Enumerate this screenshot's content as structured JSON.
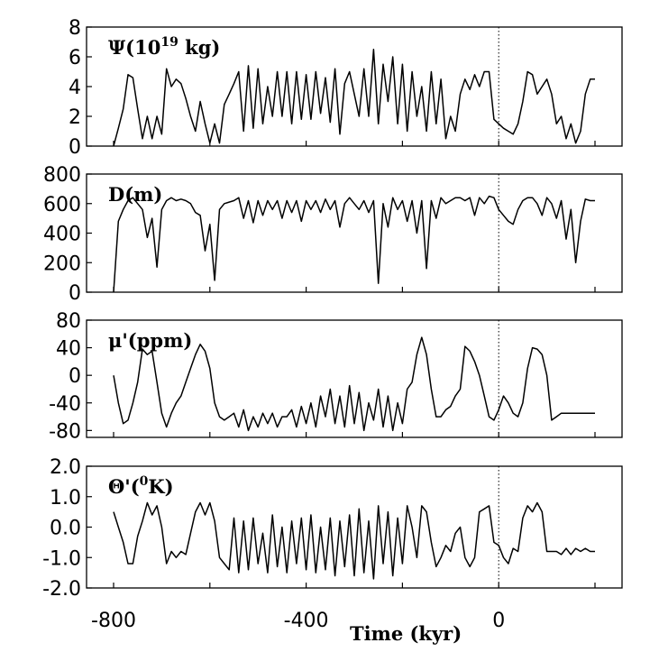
{
  "chart_data": [
    {
      "type": "line",
      "label": "Ψ(10",
      "label_sup": "19",
      "label_suffix": " kg)",
      "xlim": [
        -800,
        200
      ],
      "ylim": [
        0,
        8
      ],
      "yticks": [
        "0",
        "2",
        "4",
        "6",
        "8"
      ],
      "ytick_values": [
        0,
        2,
        4,
        6,
        8
      ],
      "x": [
        -800,
        -790,
        -780,
        -770,
        -760,
        -750,
        -740,
        -730,
        -720,
        -710,
        -700,
        -690,
        -680,
        -670,
        -660,
        -650,
        -640,
        -630,
        -620,
        -610,
        -600,
        -590,
        -580,
        -570,
        -560,
        -550,
        -540,
        -530,
        -520,
        -510,
        -500,
        -490,
        -480,
        -470,
        -460,
        -450,
        -440,
        -430,
        -420,
        -410,
        -400,
        -390,
        -380,
        -370,
        -360,
        -350,
        -340,
        -330,
        -320,
        -310,
        -300,
        -290,
        -280,
        -270,
        -260,
        -250,
        -240,
        -230,
        -220,
        -210,
        -200,
        -190,
        -180,
        -170,
        -160,
        -150,
        -140,
        -130,
        -120,
        -110,
        -100,
        -90,
        -80,
        -70,
        -60,
        -50,
        -40,
        -30,
        -20,
        -10,
        0,
        10,
        20,
        30,
        40,
        50,
        60,
        70,
        80,
        90,
        100,
        110,
        120,
        130,
        140,
        150,
        160,
        170,
        180,
        190,
        200
      ],
      "values": [
        0,
        1.2,
        2.5,
        4.8,
        4.6,
        2.5,
        0.5,
        2.0,
        0.5,
        2.0,
        0.8,
        5.2,
        4.0,
        4.5,
        4.2,
        3.2,
        2.0,
        1.0,
        3.0,
        1.5,
        0.2,
        1.5,
        0.2,
        2.8,
        3.5,
        4.2,
        5.0,
        1.0,
        5.4,
        1.2,
        5.2,
        1.5,
        4.0,
        2.0,
        5.0,
        2.0,
        5.0,
        1.5,
        5.0,
        1.8,
        4.8,
        1.8,
        5.0,
        2.2,
        4.6,
        1.6,
        5.2,
        0.8,
        4.2,
        5.0,
        3.5,
        2.0,
        5.2,
        2.0,
        6.5,
        1.5,
        5.5,
        3.0,
        6.0,
        1.5,
        5.5,
        1.0,
        5.0,
        2.0,
        4.0,
        1.0,
        5.0,
        1.5,
        4.5,
        0.5,
        2.0,
        1.0,
        3.5,
        4.5,
        3.8,
        4.8,
        4.0,
        5.0,
        5.0,
        1.8,
        1.5,
        1.2,
        1.0,
        0.8,
        1.5,
        3.0,
        5.0,
        4.8,
        3.5,
        4.0,
        4.5,
        3.5,
        1.5,
        2.0,
        0.5,
        1.5,
        0.2,
        1.0,
        3.5,
        4.5,
        4.5
      ]
    },
    {
      "type": "line",
      "label": "D(m)",
      "xlim": [
        -800,
        200
      ],
      "ylim": [
        0,
        800
      ],
      "yticks": [
        "0",
        "200",
        "400",
        "600",
        "800"
      ],
      "ytick_values": [
        0,
        200,
        400,
        600,
        800
      ],
      "x": [
        -800,
        -790,
        -780,
        -770,
        -760,
        -750,
        -740,
        -730,
        -720,
        -710,
        -700,
        -690,
        -680,
        -670,
        -660,
        -650,
        -640,
        -630,
        -620,
        -610,
        -600,
        -590,
        -580,
        -570,
        -560,
        -550,
        -540,
        -530,
        -520,
        -510,
        -500,
        -490,
        -480,
        -470,
        -460,
        -450,
        -440,
        -430,
        -420,
        -410,
        -400,
        -390,
        -380,
        -370,
        -360,
        -350,
        -340,
        -330,
        -320,
        -310,
        -300,
        -290,
        -280,
        -270,
        -260,
        -250,
        -240,
        -230,
        -220,
        -210,
        -200,
        -190,
        -180,
        -170,
        -160,
        -150,
        -140,
        -130,
        -120,
        -110,
        -100,
        -90,
        -80,
        -70,
        -60,
        -50,
        -40,
        -30,
        -20,
        -10,
        0,
        10,
        20,
        30,
        40,
        50,
        60,
        70,
        80,
        90,
        100,
        110,
        120,
        130,
        140,
        150,
        160,
        170,
        180,
        190,
        200
      ],
      "values": [
        0,
        480,
        560,
        620,
        640,
        600,
        560,
        370,
        500,
        170,
        560,
        620,
        640,
        620,
        630,
        620,
        600,
        540,
        520,
        280,
        460,
        80,
        560,
        600,
        610,
        620,
        640,
        500,
        620,
        470,
        620,
        520,
        620,
        560,
        620,
        500,
        620,
        540,
        620,
        480,
        620,
        560,
        620,
        540,
        630,
        560,
        620,
        440,
        600,
        640,
        600,
        560,
        620,
        540,
        620,
        60,
        600,
        440,
        640,
        560,
        620,
        480,
        620,
        400,
        620,
        160,
        620,
        500,
        640,
        600,
        620,
        640,
        640,
        620,
        640,
        520,
        640,
        600,
        650,
        640,
        560,
        520,
        480,
        460,
        560,
        620,
        640,
        640,
        600,
        520,
        640,
        600,
        500,
        620,
        360,
        560,
        200,
        480,
        630,
        620,
        620
      ]
    },
    {
      "type": "line",
      "label": "μ'(ppm)",
      "xlim": [
        -800,
        200
      ],
      "ylim": [
        -90,
        80
      ],
      "yticks": [
        "-80",
        "-40",
        "0",
        "40",
        "80"
      ],
      "ytick_values": [
        -80,
        -40,
        0,
        40,
        80
      ],
      "x": [
        -800,
        -790,
        -780,
        -770,
        -760,
        -750,
        -740,
        -730,
        -720,
        -710,
        -700,
        -690,
        -680,
        -670,
        -660,
        -650,
        -640,
        -630,
        -620,
        -610,
        -600,
        -590,
        -580,
        -570,
        -560,
        -550,
        -540,
        -530,
        -520,
        -510,
        -500,
        -490,
        -480,
        -470,
        -460,
        -450,
        -440,
        -430,
        -420,
        -410,
        -400,
        -390,
        -380,
        -370,
        -360,
        -350,
        -340,
        -330,
        -320,
        -310,
        -300,
        -290,
        -280,
        -270,
        -260,
        -250,
        -240,
        -230,
        -220,
        -210,
        -200,
        -190,
        -180,
        -170,
        -160,
        -150,
        -140,
        -130,
        -120,
        -110,
        -100,
        -90,
        -80,
        -70,
        -60,
        -50,
        -40,
        -30,
        -20,
        -10,
        0,
        10,
        20,
        30,
        40,
        50,
        60,
        70,
        80,
        90,
        100,
        110,
        120,
        130,
        140,
        150,
        160,
        170,
        180,
        190,
        200
      ],
      "values": [
        0,
        -40,
        -70,
        -65,
        -40,
        -10,
        38,
        30,
        35,
        -10,
        -55,
        -75,
        -55,
        -40,
        -30,
        -10,
        10,
        30,
        45,
        35,
        10,
        -40,
        -60,
        -65,
        -60,
        -55,
        -75,
        -50,
        -80,
        -60,
        -75,
        -55,
        -70,
        -55,
        -75,
        -60,
        -60,
        -50,
        -75,
        -45,
        -70,
        -40,
        -75,
        -30,
        -60,
        -20,
        -70,
        -30,
        -75,
        -15,
        -70,
        -25,
        -80,
        -40,
        -65,
        -20,
        -75,
        -30,
        -80,
        -40,
        -70,
        -20,
        -10,
        30,
        55,
        30,
        -20,
        -60,
        -60,
        -50,
        -45,
        -30,
        -20,
        42,
        35,
        20,
        0,
        -30,
        -60,
        -65,
        -50,
        -30,
        -40,
        -55,
        -60,
        -40,
        10,
        40,
        38,
        30,
        0,
        -65,
        -60,
        -55,
        -55,
        -55,
        -55,
        -55,
        -55,
        -55,
        -55
      ]
    },
    {
      "type": "line",
      "label": "Θ'(",
      "label_sup": "0",
      "label_suffix": "K)",
      "xlabel": "Time (kyr)",
      "xlim": [
        -800,
        200
      ],
      "ylim": [
        -2.0,
        2.0
      ],
      "yticks": [
        "-2.0",
        "-1.0",
        "0.0",
        "1.0",
        "2.0"
      ],
      "ytick_values": [
        -2,
        -1,
        0,
        1,
        2
      ],
      "xticks": [
        "-800",
        "-400",
        "0"
      ],
      "xtick_values": [
        -800,
        -400,
        0
      ],
      "x": [
        -800,
        -790,
        -780,
        -770,
        -760,
        -750,
        -740,
        -730,
        -720,
        -710,
        -700,
        -690,
        -680,
        -670,
        -660,
        -650,
        -640,
        -630,
        -620,
        -610,
        -600,
        -590,
        -580,
        -570,
        -560,
        -550,
        -540,
        -530,
        -520,
        -510,
        -500,
        -490,
        -480,
        -470,
        -460,
        -450,
        -440,
        -430,
        -420,
        -410,
        -400,
        -390,
        -380,
        -370,
        -360,
        -350,
        -340,
        -330,
        -320,
        -310,
        -300,
        -290,
        -280,
        -270,
        -260,
        -250,
        -240,
        -230,
        -220,
        -210,
        -200,
        -190,
        -180,
        -170,
        -160,
        -150,
        -140,
        -130,
        -120,
        -110,
        -100,
        -90,
        -80,
        -70,
        -60,
        -50,
        -40,
        -30,
        -20,
        -10,
        0,
        10,
        20,
        30,
        40,
        50,
        60,
        70,
        80,
        90,
        100,
        110,
        120,
        130,
        140,
        150,
        160,
        170,
        180,
        190,
        200
      ],
      "values": [
        0.5,
        0.0,
        -0.5,
        -1.2,
        -1.2,
        -0.3,
        0.2,
        0.8,
        0.4,
        0.7,
        0.0,
        -1.2,
        -0.8,
        -1.0,
        -0.8,
        -0.9,
        -0.2,
        0.5,
        0.8,
        0.4,
        0.8,
        0.2,
        -1.0,
        -1.2,
        -1.4,
        0.3,
        -1.5,
        0.2,
        -1.4,
        0.3,
        -1.2,
        -0.2,
        -1.5,
        0.4,
        -1.3,
        0.0,
        -1.5,
        0.2,
        -1.2,
        0.3,
        -1.4,
        0.4,
        -1.5,
        0.0,
        -1.4,
        0.3,
        -1.6,
        0.2,
        -1.3,
        0.4,
        -1.6,
        0.6,
        -1.5,
        0.2,
        -1.7,
        0.7,
        -1.2,
        0.5,
        -1.6,
        0.3,
        -1.2,
        0.7,
        0.0,
        -1.0,
        0.7,
        0.5,
        -0.5,
        -1.3,
        -1.0,
        -0.6,
        -0.8,
        -0.2,
        0.0,
        -1.0,
        -1.3,
        -1.0,
        0.5,
        0.6,
        0.7,
        -0.5,
        -0.6,
        -1.0,
        -1.2,
        -0.7,
        -0.8,
        0.3,
        0.7,
        0.5,
        0.8,
        0.5,
        -0.8,
        -0.8,
        -0.8,
        -0.9,
        -0.7,
        -0.9,
        -0.7,
        -0.8,
        -0.7,
        -0.8,
        -0.8
      ]
    }
  ]
}
